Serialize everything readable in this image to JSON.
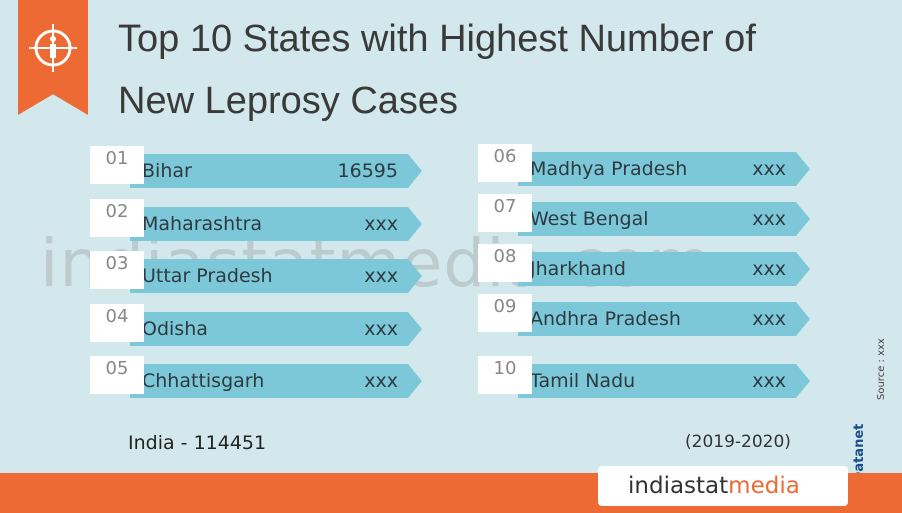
{
  "header": {
    "title_lines": [
      "Top 10 States with Highest Number of",
      "New Leprosy Cases"
    ]
  },
  "items": [
    {
      "rank": "01",
      "name": "Bihar",
      "value": "16595"
    },
    {
      "rank": "02",
      "name": "Maharashtra",
      "value": "xxx"
    },
    {
      "rank": "03",
      "name": "Uttar Pradesh",
      "value": "xxx"
    },
    {
      "rank": "04",
      "name": "Odisha",
      "value": "xxx"
    },
    {
      "rank": "05",
      "name": "Chhattisgarh",
      "value": "xxx"
    },
    {
      "rank": "06",
      "name": "Madhya Pradesh",
      "value": "xxx"
    },
    {
      "rank": "07",
      "name": "West Bengal",
      "value": "xxx"
    },
    {
      "rank": "08",
      "name": "Jharkhand",
      "value": "xxx"
    },
    {
      "rank": "09",
      "name": "Andhra Pradesh",
      "value": "xxx"
    },
    {
      "rank": "10",
      "name": "Tamil Nadu",
      "value": "xxx"
    }
  ],
  "footer": {
    "total": "India  -  114451",
    "period": "(2019-2020)",
    "source": "Source : xxx",
    "credit": "© Datanet",
    "brand_a": "indiastat",
    "brand_b": "media",
    "watermark": "indiastatmedia.com"
  }
}
